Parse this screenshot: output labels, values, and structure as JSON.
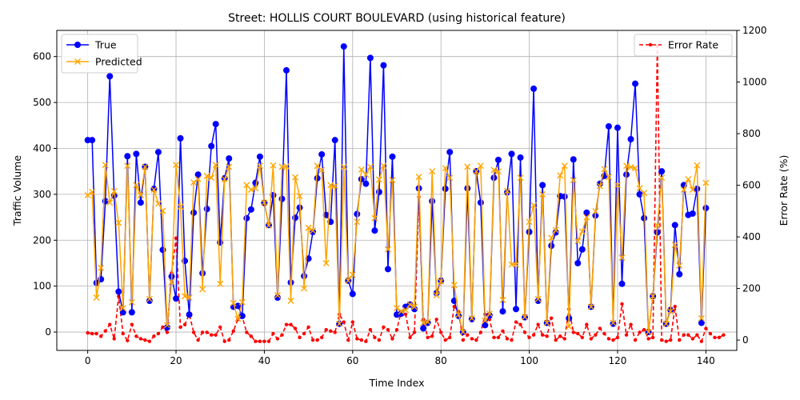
{
  "chart_data": {
    "type": "line",
    "title": "Street: HOLLIS COURT BOULEVARD (using historical feature)",
    "xlabel": "Time Index",
    "ylabel": "Traffic Volume",
    "y2label": "Error Rate (%)",
    "xlim": [
      -7,
      147
    ],
    "ylim": [
      -40,
      657
    ],
    "y2lim": [
      -40,
      1200
    ],
    "x_ticks": [
      0,
      20,
      40,
      60,
      80,
      100,
      120,
      140
    ],
    "y_ticks": [
      0,
      100,
      200,
      300,
      400,
      500,
      600
    ],
    "y2_ticks": [
      0,
      200,
      400,
      600,
      800,
      1000,
      1200
    ],
    "grid": true,
    "legend_left": "upper-left",
    "legend_right": "upper-right",
    "colors": {
      "true": "#0000ff",
      "predicted": "#ffa500",
      "error": "#ff0000"
    },
    "series": [
      {
        "name": "True",
        "axis": "left",
        "marker": "circle",
        "values": [
          418,
          418,
          107,
          115,
          285,
          557,
          297,
          88,
          43,
          383,
          43,
          388,
          282,
          360,
          68,
          312,
          392,
          179,
          10,
          121,
          73,
          422,
          155,
          38,
          260,
          343,
          128,
          268,
          405,
          453,
          195,
          335,
          378,
          55,
          57,
          35,
          248,
          267,
          325,
          382,
          281,
          233,
          298,
          75,
          290,
          570,
          108,
          249,
          271,
          122,
          160,
          218,
          335,
          387,
          255,
          240,
          418,
          18,
          622,
          112,
          83,
          257,
          333,
          323,
          597,
          221,
          305,
          581,
          137,
          382,
          38,
          40,
          55,
          60,
          50,
          313,
          8,
          20,
          285,
          85,
          112,
          312,
          392,
          68,
          35,
          0,
          313,
          28,
          350,
          282,
          15,
          36,
          336,
          375,
          45,
          304,
          388,
          50,
          380,
          32,
          218,
          530,
          68,
          320,
          20,
          188,
          217,
          296,
          295,
          30,
          376,
          150,
          180,
          260,
          55,
          254,
          323,
          340,
          448,
          18,
          445,
          105,
          343,
          420,
          541,
          300,
          248,
          0,
          78,
          217,
          350,
          18,
          48,
          233,
          126,
          320,
          255,
          258,
          312,
          20,
          270
        ]
      },
      {
        "name": "Predicted",
        "axis": "left",
        "marker": "x",
        "values": [
          298,
          305,
          75,
          140,
          364,
          282,
          307,
          238,
          52,
          362,
          65,
          320,
          298,
          360,
          72,
          310,
          280,
          264,
          15,
          109,
          364,
          273,
          78,
          75,
          326,
          333,
          93,
          340,
          336,
          364,
          105,
          333,
          360,
          63,
          29,
          65,
          320,
          310,
          313,
          362,
          282,
          232,
          363,
          80,
          360,
          361,
          68,
          337,
          296,
          95,
          227,
          221,
          362,
          353,
          150,
          320,
          318,
          18,
          360,
          112,
          125,
          240,
          354,
          343,
          360,
          248,
          332,
          362,
          180,
          331,
          52,
          45,
          48,
          60,
          55,
          338,
          20,
          22,
          350,
          80,
          110,
          357,
          336,
          102,
          38,
          0,
          360,
          30,
          350,
          362,
          25,
          40,
          353,
          350,
          70,
          307,
          147,
          147,
          336,
          33,
          240,
          276,
          72,
          300,
          20,
          205,
          222,
          341,
          362,
          12,
          331,
          198,
          219,
          250,
          55,
          263,
          318,
          355,
          338,
          20,
          320,
          162,
          362,
          359,
          357,
          313,
          303,
          0,
          78,
          232,
          336,
          18,
          45,
          190,
          145,
          310,
          333,
          310,
          363,
          30,
          325
        ]
      },
      {
        "name": "Error Rate",
        "axis": "right",
        "marker": "dot",
        "values": [
          28,
          25,
          25,
          15,
          35,
          60,
          5,
          170,
          25,
          -2,
          60,
          15,
          5,
          0,
          -5,
          15,
          25,
          50,
          30,
          260,
          395,
          50,
          60,
          100,
          30,
          0,
          30,
          30,
          20,
          20,
          50,
          -5,
          0,
          35,
          80,
          90,
          30,
          15,
          -5,
          -5,
          -5,
          -5,
          25,
          5,
          20,
          60,
          60,
          45,
          10,
          25,
          50,
          0,
          0,
          10,
          40,
          35,
          30,
          100,
          70,
          0,
          70,
          5,
          0,
          -5,
          40,
          10,
          0,
          50,
          40,
          5,
          40,
          110,
          100,
          10,
          30,
          555,
          80,
          10,
          15,
          80,
          30,
          0,
          10,
          130,
          110,
          0,
          20,
          5,
          0,
          30,
          100,
          80,
          10,
          10,
          35,
          5,
          0,
          70,
          60,
          30,
          10,
          20,
          60,
          20,
          15,
          85,
          0,
          15,
          5,
          120,
          30,
          25,
          10,
          60,
          5,
          20,
          45,
          25,
          5,
          0,
          10,
          140,
          20,
          60,
          0,
          30,
          40,
          5,
          10,
          1140,
          0,
          -5,
          0,
          130,
          0,
          20,
          20,
          5,
          20,
          -5,
          45,
          25,
          10,
          10,
          20
        ]
      }
    ]
  }
}
